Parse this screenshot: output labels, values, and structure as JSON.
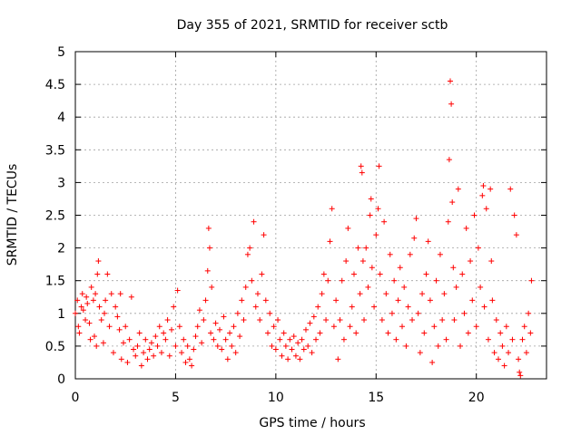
{
  "chart_data": {
    "type": "scatter",
    "title": "Day 355 of 2021, SRMTID for receiver sctb",
    "xlabel": "GPS time / hours",
    "ylabel": "SRMTID / TECUs",
    "xlim": [
      0,
      23.5
    ],
    "ylim": [
      0,
      5
    ],
    "xticks": [
      0,
      5,
      10,
      15,
      20
    ],
    "xtick_labels": [
      "0",
      "5",
      "10",
      "15",
      "20"
    ],
    "yticks": [
      0,
      0.5,
      1,
      1.5,
      2,
      2.5,
      3,
      3.5,
      4,
      4.5,
      5
    ],
    "ytick_labels": [
      "0",
      "0.5",
      "1",
      "1.5",
      "2",
      "2.5",
      "3",
      "3.5",
      "4",
      "4.5",
      "5"
    ],
    "grid": true,
    "marker": "+",
    "series": [
      {
        "name": "SRMTID",
        "color": "#ff0000",
        "points": [
          [
            0.0,
            1.0
          ],
          [
            0.1,
            1.2
          ],
          [
            0.15,
            0.8
          ],
          [
            0.2,
            0.7
          ],
          [
            0.3,
            1.1
          ],
          [
            0.35,
            1.3
          ],
          [
            0.4,
            1.05
          ],
          [
            0.5,
            0.9
          ],
          [
            0.55,
            1.25
          ],
          [
            0.6,
            1.15
          ],
          [
            0.7,
            0.85
          ],
          [
            0.75,
            0.6
          ],
          [
            0.8,
            1.4
          ],
          [
            0.9,
            1.2
          ],
          [
            0.95,
            0.65
          ],
          [
            1.0,
            1.3
          ],
          [
            1.05,
            0.5
          ],
          [
            1.1,
            1.6
          ],
          [
            1.15,
            1.8
          ],
          [
            1.2,
            1.1
          ],
          [
            1.3,
            0.9
          ],
          [
            1.4,
            0.55
          ],
          [
            1.45,
            1.0
          ],
          [
            1.5,
            1.2
          ],
          [
            1.6,
            1.6
          ],
          [
            1.7,
            0.8
          ],
          [
            1.8,
            1.3
          ],
          [
            1.9,
            0.4
          ],
          [
            2.0,
            1.1
          ],
          [
            2.1,
            0.95
          ],
          [
            2.2,
            0.75
          ],
          [
            2.25,
            1.3
          ],
          [
            2.3,
            0.3
          ],
          [
            2.4,
            0.55
          ],
          [
            2.5,
            0.8
          ],
          [
            2.6,
            0.25
          ],
          [
            2.7,
            0.6
          ],
          [
            2.8,
            1.25
          ],
          [
            2.9,
            0.45
          ],
          [
            3.0,
            0.35
          ],
          [
            3.1,
            0.5
          ],
          [
            3.2,
            0.7
          ],
          [
            3.3,
            0.2
          ],
          [
            3.4,
            0.4
          ],
          [
            3.5,
            0.6
          ],
          [
            3.6,
            0.3
          ],
          [
            3.7,
            0.45
          ],
          [
            3.8,
            0.55
          ],
          [
            3.9,
            0.35
          ],
          [
            4.0,
            0.65
          ],
          [
            4.1,
            0.5
          ],
          [
            4.2,
            0.8
          ],
          [
            4.3,
            0.4
          ],
          [
            4.4,
            0.7
          ],
          [
            4.5,
            0.6
          ],
          [
            4.6,
            0.9
          ],
          [
            4.7,
            0.35
          ],
          [
            4.8,
            0.75
          ],
          [
            4.9,
            1.1
          ],
          [
            5.0,
            0.5
          ],
          [
            5.1,
            1.35
          ],
          [
            5.2,
            0.8
          ],
          [
            5.3,
            0.4
          ],
          [
            5.4,
            0.6
          ],
          [
            5.5,
            0.25
          ],
          [
            5.6,
            0.5
          ],
          [
            5.7,
            0.3
          ],
          [
            5.8,
            0.2
          ],
          [
            5.9,
            0.45
          ],
          [
            6.0,
            0.65
          ],
          [
            6.1,
            0.8
          ],
          [
            6.2,
            1.05
          ],
          [
            6.3,
            0.55
          ],
          [
            6.4,
            0.9
          ],
          [
            6.5,
            1.2
          ],
          [
            6.6,
            1.65
          ],
          [
            6.65,
            2.3
          ],
          [
            6.7,
            2.0
          ],
          [
            6.75,
            0.7
          ],
          [
            6.8,
            1.4
          ],
          [
            6.9,
            0.6
          ],
          [
            7.0,
            0.85
          ],
          [
            7.1,
            0.5
          ],
          [
            7.2,
            0.75
          ],
          [
            7.3,
            0.45
          ],
          [
            7.4,
            0.95
          ],
          [
            7.5,
            0.6
          ],
          [
            7.6,
            0.3
          ],
          [
            7.7,
            0.7
          ],
          [
            7.8,
            0.5
          ],
          [
            7.9,
            0.8
          ],
          [
            8.0,
            0.4
          ],
          [
            8.1,
            1.0
          ],
          [
            8.2,
            0.65
          ],
          [
            8.3,
            1.2
          ],
          [
            8.4,
            0.9
          ],
          [
            8.5,
            1.4
          ],
          [
            8.6,
            1.9
          ],
          [
            8.7,
            2.0
          ],
          [
            8.8,
            1.5
          ],
          [
            8.9,
            2.4
          ],
          [
            9.0,
            1.1
          ],
          [
            9.1,
            1.3
          ],
          [
            9.2,
            0.9
          ],
          [
            9.3,
            1.6
          ],
          [
            9.4,
            2.2
          ],
          [
            9.5,
            1.2
          ],
          [
            9.6,
            0.7
          ],
          [
            9.7,
            1.0
          ],
          [
            9.8,
            0.5
          ],
          [
            9.9,
            0.8
          ],
          [
            10.0,
            0.45
          ],
          [
            10.1,
            0.9
          ],
          [
            10.2,
            0.6
          ],
          [
            10.3,
            0.35
          ],
          [
            10.4,
            0.7
          ],
          [
            10.5,
            0.5
          ],
          [
            10.6,
            0.3
          ],
          [
            10.7,
            0.6
          ],
          [
            10.8,
            0.45
          ],
          [
            10.9,
            0.65
          ],
          [
            11.0,
            0.35
          ],
          [
            11.1,
            0.55
          ],
          [
            11.2,
            0.3
          ],
          [
            11.3,
            0.6
          ],
          [
            11.4,
            0.45
          ],
          [
            11.5,
            0.75
          ],
          [
            11.6,
            0.5
          ],
          [
            11.7,
            0.85
          ],
          [
            11.8,
            0.4
          ],
          [
            11.9,
            0.95
          ],
          [
            12.0,
            0.6
          ],
          [
            12.1,
            1.1
          ],
          [
            12.2,
            0.7
          ],
          [
            12.3,
            1.3
          ],
          [
            12.4,
            1.6
          ],
          [
            12.5,
            0.9
          ],
          [
            12.6,
            1.5
          ],
          [
            12.7,
            2.1
          ],
          [
            12.8,
            2.6
          ],
          [
            12.9,
            0.8
          ],
          [
            13.0,
            1.2
          ],
          [
            13.1,
            0.3
          ],
          [
            13.2,
            0.9
          ],
          [
            13.3,
            1.5
          ],
          [
            13.4,
            0.6
          ],
          [
            13.5,
            1.8
          ],
          [
            13.6,
            2.3
          ],
          [
            13.7,
            0.8
          ],
          [
            13.8,
            1.1
          ],
          [
            13.9,
            1.6
          ],
          [
            14.0,
            0.7
          ],
          [
            14.1,
            2.0
          ],
          [
            14.2,
            1.3
          ],
          [
            14.25,
            3.25
          ],
          [
            14.3,
            3.15
          ],
          [
            14.35,
            1.8
          ],
          [
            14.4,
            0.9
          ],
          [
            14.5,
            2.0
          ],
          [
            14.6,
            1.4
          ],
          [
            14.7,
            2.5
          ],
          [
            14.75,
            2.75
          ],
          [
            14.8,
            1.7
          ],
          [
            14.9,
            1.1
          ],
          [
            15.0,
            2.2
          ],
          [
            15.1,
            2.6
          ],
          [
            15.15,
            3.25
          ],
          [
            15.2,
            1.6
          ],
          [
            15.3,
            0.9
          ],
          [
            15.4,
            2.4
          ],
          [
            15.5,
            1.3
          ],
          [
            15.6,
            0.7
          ],
          [
            15.7,
            1.9
          ],
          [
            15.8,
            1.0
          ],
          [
            15.9,
            1.5
          ],
          [
            16.0,
            0.6
          ],
          [
            16.1,
            1.2
          ],
          [
            16.2,
            1.7
          ],
          [
            16.3,
            0.8
          ],
          [
            16.4,
            1.4
          ],
          [
            16.5,
            0.5
          ],
          [
            16.6,
            1.1
          ],
          [
            16.7,
            1.9
          ],
          [
            16.8,
            0.9
          ],
          [
            16.9,
            2.15
          ],
          [
            17.0,
            2.45
          ],
          [
            17.1,
            1.0
          ],
          [
            17.2,
            0.4
          ],
          [
            17.3,
            1.3
          ],
          [
            17.4,
            0.7
          ],
          [
            17.5,
            1.6
          ],
          [
            17.6,
            2.1
          ],
          [
            17.7,
            1.2
          ],
          [
            17.8,
            0.25
          ],
          [
            17.9,
            0.8
          ],
          [
            18.0,
            1.5
          ],
          [
            18.1,
            0.5
          ],
          [
            18.2,
            1.9
          ],
          [
            18.3,
            0.9
          ],
          [
            18.4,
            1.3
          ],
          [
            18.5,
            0.6
          ],
          [
            18.6,
            2.4
          ],
          [
            18.65,
            3.35
          ],
          [
            18.7,
            4.55
          ],
          [
            18.75,
            4.2
          ],
          [
            18.8,
            2.7
          ],
          [
            18.85,
            1.7
          ],
          [
            18.9,
            0.9
          ],
          [
            19.0,
            1.4
          ],
          [
            19.1,
            2.9
          ],
          [
            19.2,
            0.5
          ],
          [
            19.3,
            1.6
          ],
          [
            19.4,
            1.0
          ],
          [
            19.5,
            2.3
          ],
          [
            19.6,
            0.7
          ],
          [
            19.7,
            1.8
          ],
          [
            19.8,
            1.2
          ],
          [
            19.9,
            2.5
          ],
          [
            20.0,
            0.8
          ],
          [
            20.1,
            2.0
          ],
          [
            20.2,
            1.4
          ],
          [
            20.3,
            2.8
          ],
          [
            20.35,
            2.95
          ],
          [
            20.4,
            1.1
          ],
          [
            20.5,
            2.6
          ],
          [
            20.6,
            0.6
          ],
          [
            20.7,
            2.9
          ],
          [
            20.75,
            1.8
          ],
          [
            20.8,
            1.2
          ],
          [
            20.9,
            0.4
          ],
          [
            21.0,
            0.9
          ],
          [
            21.1,
            0.3
          ],
          [
            21.2,
            0.7
          ],
          [
            21.3,
            0.5
          ],
          [
            21.4,
            0.2
          ],
          [
            21.5,
            0.8
          ],
          [
            21.6,
            0.4
          ],
          [
            21.7,
            2.9
          ],
          [
            21.8,
            0.6
          ],
          [
            21.9,
            2.5
          ],
          [
            22.0,
            2.2
          ],
          [
            22.1,
            0.3
          ],
          [
            22.15,
            0.1
          ],
          [
            22.2,
            0.05
          ],
          [
            22.3,
            0.6
          ],
          [
            22.4,
            0.8
          ],
          [
            22.5,
            0.4
          ],
          [
            22.6,
            1.0
          ],
          [
            22.7,
            0.7
          ],
          [
            22.75,
            1.5
          ]
        ]
      }
    ]
  }
}
